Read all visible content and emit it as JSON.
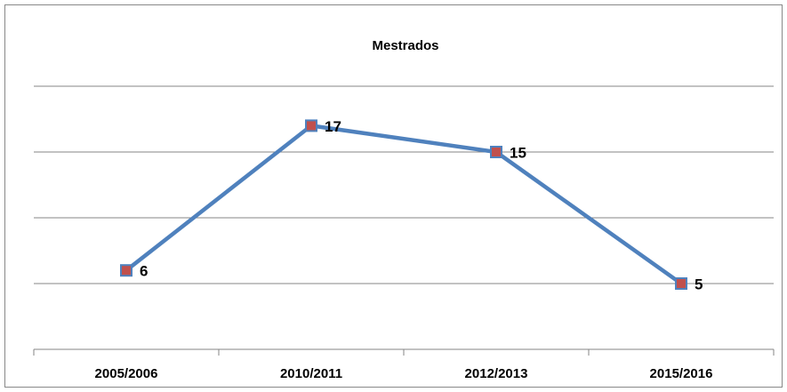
{
  "chart_data": {
    "type": "line",
    "title": "Mestrados",
    "categories": [
      "2005/2006",
      "2010/2011",
      "2012/2013",
      "2015/2016"
    ],
    "series": [
      {
        "name": "Mestrados",
        "color": "#4f81bd",
        "marker_color": "#c0504d",
        "values": [
          6,
          17,
          15,
          5
        ]
      }
    ],
    "ylim": [
      0,
      20
    ],
    "yticks": [
      0,
      5,
      10,
      15,
      20
    ],
    "grid": true
  }
}
